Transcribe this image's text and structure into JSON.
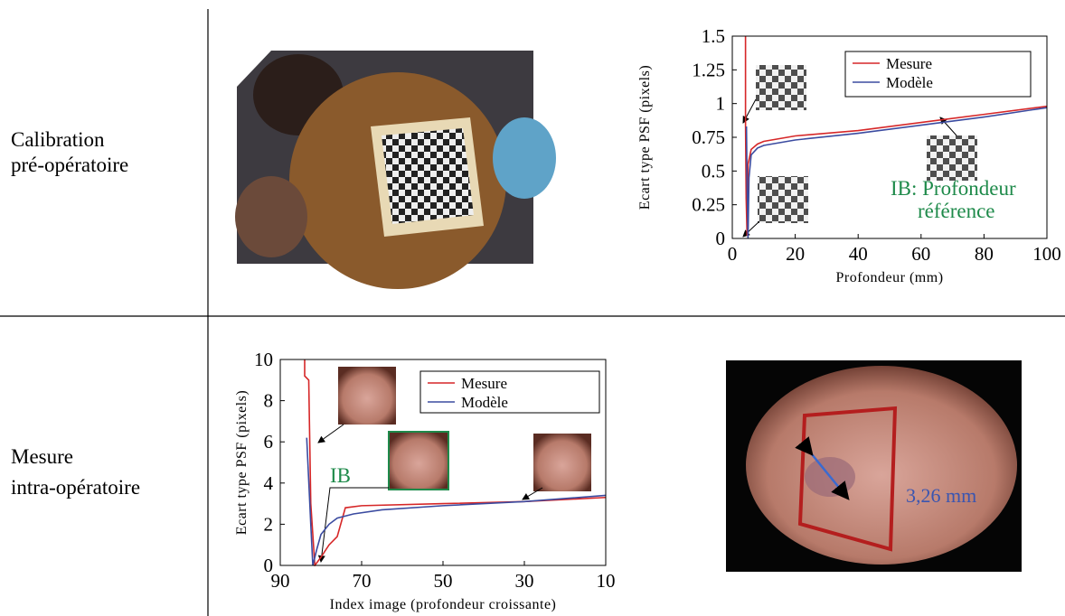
{
  "rows": [
    {
      "label": [
        "Calibration",
        "pré-opératoire"
      ]
    },
    {
      "label": [
        "Mesure",
        "intra-opératoire"
      ]
    }
  ],
  "image_annotation": "3,26 mm",
  "chart_data": [
    {
      "type": "line",
      "xlabel": "Profondeur (mm)",
      "ylabel": "Ecart type PSF (pixels)",
      "xlim": [
        0,
        100
      ],
      "ylim": [
        0,
        1.5
      ],
      "xticks": [
        0,
        20,
        40,
        60,
        80,
        100
      ],
      "yticks": [
        0,
        0.25,
        0.5,
        0.75,
        1,
        1.25,
        1.5
      ],
      "annotation": [
        "IB: Profondeur",
        "référence"
      ],
      "annotation_color": "#1e8a4a",
      "series": [
        {
          "name": "Mesure",
          "color": "#d62728",
          "x": [
            4.2,
            4.2,
            4.4,
            4.7,
            5,
            6,
            8,
            10,
            20,
            40,
            60,
            80,
            100
          ],
          "values": [
            1.5,
            0.85,
            0.3,
            0.02,
            0.55,
            0.66,
            0.7,
            0.72,
            0.76,
            0.8,
            0.86,
            0.92,
            0.98
          ]
        },
        {
          "name": "Modèle",
          "color": "#3b4ba0",
          "x": [
            4.5,
            4.7,
            5,
            5.3,
            6,
            8,
            10,
            20,
            40,
            60,
            80,
            100
          ],
          "values": [
            0.83,
            0.4,
            0,
            0.45,
            0.62,
            0.67,
            0.69,
            0.73,
            0.78,
            0.84,
            0.9,
            0.97
          ]
        }
      ]
    },
    {
      "type": "line",
      "xlabel": "Index image (profondeur croissante)",
      "ylabel": "Ecart type PSF (pixels)",
      "xlim": [
        90,
        10
      ],
      "ylim": [
        0,
        10
      ],
      "xticks": [
        90,
        70,
        50,
        30,
        10
      ],
      "yticks": [
        0,
        2,
        4,
        6,
        8,
        10
      ],
      "annotation": [
        "IB"
      ],
      "annotation_color": "#1e8a4a",
      "series": [
        {
          "name": "Mesure",
          "color": "#d62728",
          "x": [
            84,
            84,
            83,
            82.5,
            81.5,
            80,
            78,
            76,
            74,
            70,
            50,
            30,
            10
          ],
          "values": [
            10,
            9.2,
            9,
            3,
            0,
            0.4,
            1,
            1.4,
            2.8,
            2.9,
            3,
            3.1,
            3.3
          ]
        },
        {
          "name": "Modèle",
          "color": "#3b4ba0",
          "x": [
            83.5,
            82.5,
            82,
            81,
            80,
            78,
            76,
            72,
            65,
            50,
            30,
            10
          ],
          "values": [
            6.2,
            2,
            0,
            0.8,
            1.5,
            2,
            2.3,
            2.5,
            2.7,
            2.9,
            3.1,
            3.4
          ]
        }
      ]
    }
  ]
}
